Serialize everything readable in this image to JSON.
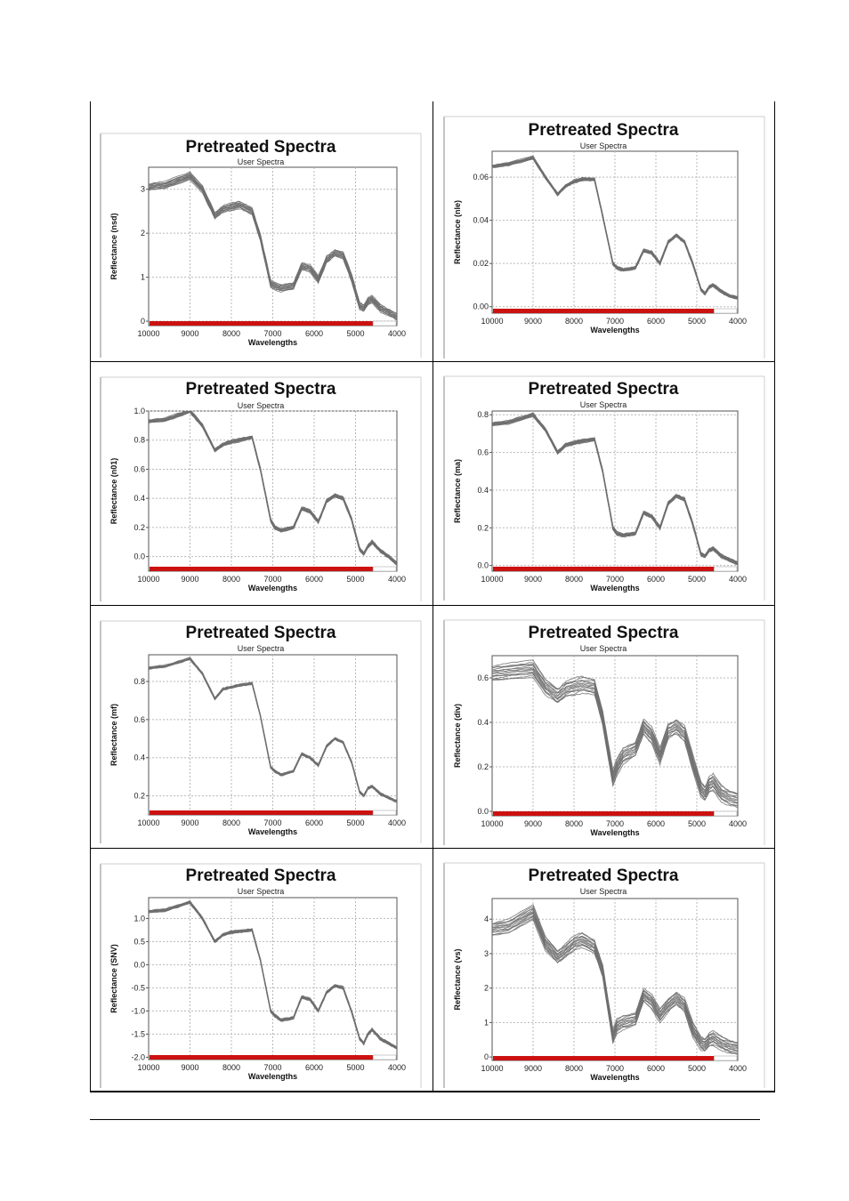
{
  "chart_data": [
    {
      "type": "line",
      "title": "Pretreated Spectra",
      "subtitle": "User Spectra",
      "xlabel": "Wavelengths",
      "ylabel": "Reflectance (nsd)",
      "xlim": [
        10000,
        4000
      ],
      "ylim": [
        -0.1,
        3.5
      ],
      "xticks": [
        "10000",
        "9000",
        "8000",
        "7000",
        "6000",
        "5000",
        "4000"
      ],
      "yticks": [
        {
          "v": 0,
          "label": "0"
        },
        {
          "v": 1,
          "label": "1"
        },
        {
          "v": 2,
          "label": "2"
        },
        {
          "v": 3,
          "label": "3"
        }
      ],
      "grid": true,
      "band_spread": 0.18,
      "x": [
        10000,
        9600,
        9000,
        8700,
        8400,
        8200,
        8000,
        7800,
        7500,
        7300,
        7050,
        6950,
        6800,
        6500,
        6300,
        6100,
        5900,
        5700,
        5500,
        5300,
        5100,
        4900,
        4800,
        4700,
        4600,
        4400,
        4200,
        4000
      ],
      "values": [
        3.05,
        3.1,
        3.3,
        3.0,
        2.4,
        2.55,
        2.6,
        2.65,
        2.5,
        1.9,
        0.85,
        0.8,
        0.75,
        0.8,
        1.25,
        1.2,
        0.95,
        1.4,
        1.55,
        1.5,
        1.0,
        0.35,
        0.3,
        0.45,
        0.5,
        0.3,
        0.2,
        0.1
      ]
    },
    {
      "type": "line",
      "title": "Pretreated Spectra",
      "subtitle": "User Spectra",
      "xlabel": "Wavelengths",
      "ylabel": "Reflectance (nle)",
      "xlim": [
        10000,
        4000
      ],
      "ylim": [
        -0.003,
        0.072
      ],
      "xticks": [
        "10000",
        "9000",
        "8000",
        "7000",
        "6000",
        "5000",
        "4000"
      ],
      "yticks": [
        {
          "v": 0,
          "label": "0.00"
        },
        {
          "v": 0.02,
          "label": "0.02"
        },
        {
          "v": 0.04,
          "label": "0.04"
        },
        {
          "v": 0.06,
          "label": "0.06"
        }
      ],
      "grid": true,
      "band_spread": 0.0015,
      "x": [
        10000,
        9600,
        9000,
        8700,
        8400,
        8200,
        8000,
        7800,
        7500,
        7300,
        7050,
        6950,
        6800,
        6500,
        6300,
        6100,
        5900,
        5700,
        5500,
        5300,
        5100,
        4900,
        4800,
        4700,
        4600,
        4400,
        4200,
        4000
      ],
      "values": [
        0.065,
        0.066,
        0.069,
        0.06,
        0.052,
        0.056,
        0.058,
        0.059,
        0.059,
        0.042,
        0.02,
        0.018,
        0.017,
        0.018,
        0.026,
        0.025,
        0.02,
        0.03,
        0.033,
        0.03,
        0.02,
        0.008,
        0.006,
        0.009,
        0.01,
        0.007,
        0.005,
        0.004
      ]
    },
    {
      "type": "line",
      "title": "Pretreated Spectra",
      "subtitle": "User Spectra",
      "xlabel": "Wavelengths",
      "ylabel": "Reflectance (n01)",
      "xlim": [
        10000,
        4000
      ],
      "ylim": [
        -0.1,
        1.0
      ],
      "xticks": [
        "10000",
        "9000",
        "8000",
        "7000",
        "6000",
        "5000",
        "4000"
      ],
      "yticks": [
        {
          "v": 0,
          "label": "0.0"
        },
        {
          "v": 0.2,
          "label": "0.2"
        },
        {
          "v": 0.4,
          "label": "0.4"
        },
        {
          "v": 0.6,
          "label": "0.6"
        },
        {
          "v": 0.8,
          "label": "0.8"
        },
        {
          "v": 1.0,
          "label": "1.0"
        }
      ],
      "grid": true,
      "band_spread": 0.025,
      "x": [
        10000,
        9600,
        9000,
        8700,
        8400,
        8200,
        8000,
        7800,
        7500,
        7300,
        7050,
        6950,
        6800,
        6500,
        6300,
        6100,
        5900,
        5700,
        5500,
        5300,
        5100,
        4900,
        4800,
        4700,
        4600,
        4400,
        4200,
        4000
      ],
      "values": [
        0.93,
        0.94,
        1.0,
        0.9,
        0.73,
        0.77,
        0.79,
        0.8,
        0.82,
        0.6,
        0.25,
        0.2,
        0.18,
        0.2,
        0.33,
        0.31,
        0.24,
        0.38,
        0.42,
        0.4,
        0.26,
        0.05,
        0.02,
        0.07,
        0.1,
        0.04,
        0.0,
        -0.05
      ]
    },
    {
      "type": "line",
      "title": "Pretreated Spectra",
      "subtitle": "User Spectra",
      "xlabel": "Wavelengths",
      "ylabel": "Reflectance (ma)",
      "xlim": [
        10000,
        4000
      ],
      "ylim": [
        -0.03,
        0.82
      ],
      "xticks": [
        "10000",
        "9000",
        "8000",
        "7000",
        "6000",
        "5000",
        "4000"
      ],
      "yticks": [
        {
          "v": 0,
          "label": "0.0"
        },
        {
          "v": 0.2,
          "label": "0.2"
        },
        {
          "v": 0.4,
          "label": "0.4"
        },
        {
          "v": 0.6,
          "label": "0.6"
        },
        {
          "v": 0.8,
          "label": "0.8"
        }
      ],
      "grid": true,
      "band_spread": 0.02,
      "x": [
        10000,
        9600,
        9000,
        8700,
        8400,
        8200,
        8000,
        7800,
        7500,
        7300,
        7050,
        6950,
        6800,
        6500,
        6300,
        6100,
        5900,
        5700,
        5500,
        5300,
        5100,
        4900,
        4800,
        4700,
        4600,
        4400,
        4200,
        4000
      ],
      "values": [
        0.75,
        0.76,
        0.8,
        0.72,
        0.6,
        0.64,
        0.65,
        0.66,
        0.67,
        0.5,
        0.2,
        0.17,
        0.16,
        0.17,
        0.28,
        0.26,
        0.2,
        0.33,
        0.37,
        0.35,
        0.22,
        0.06,
        0.05,
        0.08,
        0.09,
        0.05,
        0.03,
        0.01
      ]
    },
    {
      "type": "line",
      "title": "Pretreated Spectra",
      "subtitle": "User Spectra",
      "xlabel": "Wavelengths",
      "ylabel": "Reflectance (mf)",
      "xlim": [
        10000,
        4000
      ],
      "ylim": [
        0.1,
        0.94
      ],
      "xticks": [
        "10000",
        "9000",
        "8000",
        "7000",
        "6000",
        "5000",
        "4000"
      ],
      "yticks": [
        {
          "v": 0.2,
          "label": "0.2"
        },
        {
          "v": 0.4,
          "label": "0.4"
        },
        {
          "v": 0.6,
          "label": "0.6"
        },
        {
          "v": 0.8,
          "label": "0.8"
        }
      ],
      "grid": true,
      "band_spread": 0.012,
      "x": [
        10000,
        9600,
        9000,
        8700,
        8400,
        8200,
        8000,
        7800,
        7500,
        7300,
        7050,
        6950,
        6800,
        6500,
        6300,
        6100,
        5900,
        5700,
        5500,
        5300,
        5100,
        4900,
        4800,
        4700,
        4600,
        4400,
        4200,
        4000
      ],
      "values": [
        0.87,
        0.88,
        0.92,
        0.84,
        0.71,
        0.76,
        0.77,
        0.78,
        0.79,
        0.62,
        0.35,
        0.33,
        0.31,
        0.33,
        0.42,
        0.4,
        0.36,
        0.46,
        0.5,
        0.48,
        0.38,
        0.22,
        0.2,
        0.24,
        0.25,
        0.21,
        0.19,
        0.17
      ]
    },
    {
      "type": "line",
      "title": "Pretreated Spectra",
      "subtitle": "User Spectra",
      "xlabel": "Wavelengths",
      "ylabel": "Reflectance (div)",
      "xlim": [
        10000,
        4000
      ],
      "ylim": [
        -0.02,
        0.7
      ],
      "xticks": [
        "10000",
        "9000",
        "8000",
        "7000",
        "6000",
        "5000",
        "4000"
      ],
      "yticks": [
        {
          "v": 0,
          "label": "0.0"
        },
        {
          "v": 0.2,
          "label": "0.2"
        },
        {
          "v": 0.4,
          "label": "0.4"
        },
        {
          "v": 0.6,
          "label": "0.6"
        }
      ],
      "grid": true,
      "band_spread": 0.08,
      "x": [
        10000,
        9600,
        9000,
        8700,
        8400,
        8200,
        8000,
        7800,
        7500,
        7300,
        7050,
        6950,
        6800,
        6500,
        6300,
        6100,
        5900,
        5700,
        5500,
        5300,
        5100,
        4900,
        4800,
        4700,
        4600,
        4400,
        4200,
        4000
      ],
      "values": [
        0.62,
        0.63,
        0.64,
        0.56,
        0.52,
        0.55,
        0.56,
        0.57,
        0.56,
        0.42,
        0.15,
        0.2,
        0.25,
        0.28,
        0.38,
        0.34,
        0.25,
        0.36,
        0.38,
        0.35,
        0.22,
        0.1,
        0.08,
        0.12,
        0.13,
        0.08,
        0.06,
        0.05
      ]
    },
    {
      "type": "line",
      "title": "Pretreated Spectra",
      "subtitle": "User Spectra",
      "xlabel": "Wavelengths",
      "ylabel": "Reflectance (SNV)",
      "xlim": [
        10000,
        4000
      ],
      "ylim": [
        -2.05,
        1.45
      ],
      "xticks": [
        "10000",
        "9000",
        "8000",
        "7000",
        "6000",
        "5000",
        "4000"
      ],
      "yticks": [
        {
          "v": 1.0,
          "label": "1.0"
        },
        {
          "v": 0.5,
          "label": "0.5"
        },
        {
          "v": 0.0,
          "label": "0.0"
        },
        {
          "v": -0.5,
          "label": "-0.5"
        },
        {
          "v": -1.0,
          "label": "-1.0"
        },
        {
          "v": -1.5,
          "label": "-1.5"
        },
        {
          "v": -2.0,
          "label": "-2.0"
        }
      ],
      "grid": true,
      "band_spread": 0.06,
      "x": [
        10000,
        9600,
        9000,
        8700,
        8400,
        8200,
        8000,
        7800,
        7500,
        7300,
        7050,
        6950,
        6800,
        6500,
        6300,
        6100,
        5900,
        5700,
        5500,
        5300,
        5100,
        4900,
        4800,
        4700,
        4600,
        4400,
        4200,
        4000
      ],
      "values": [
        1.15,
        1.18,
        1.35,
        1.0,
        0.5,
        0.65,
        0.7,
        0.72,
        0.75,
        0.1,
        -1.0,
        -1.1,
        -1.2,
        -1.15,
        -0.7,
        -0.75,
        -1.0,
        -0.6,
        -0.45,
        -0.5,
        -1.0,
        -1.6,
        -1.7,
        -1.5,
        -1.4,
        -1.6,
        -1.7,
        -1.8
      ]
    },
    {
      "type": "line",
      "title": "Pretreated Spectra",
      "subtitle": "User Spectra",
      "xlabel": "Wavelengths",
      "ylabel": "Reflectance (vs)",
      "xlim": [
        10000,
        4000
      ],
      "ylim": [
        -0.1,
        4.6
      ],
      "xticks": [
        "10000",
        "9000",
        "8000",
        "7000",
        "6000",
        "5000",
        "4000"
      ],
      "yticks": [
        {
          "v": 0,
          "label": "0"
        },
        {
          "v": 1,
          "label": "1"
        },
        {
          "v": 2,
          "label": "2"
        },
        {
          "v": 3,
          "label": "3"
        },
        {
          "v": 4,
          "label": "4"
        }
      ],
      "grid": true,
      "band_spread": 0.45,
      "x": [
        10000,
        9600,
        9000,
        8700,
        8400,
        8200,
        8000,
        7800,
        7500,
        7300,
        7050,
        6950,
        6800,
        6500,
        6300,
        6100,
        5900,
        5700,
        5500,
        5300,
        5100,
        4900,
        4800,
        4700,
        4600,
        4400,
        4200,
        4000
      ],
      "values": [
        3.7,
        3.8,
        4.2,
        3.3,
        2.9,
        3.1,
        3.3,
        3.4,
        3.2,
        2.5,
        0.6,
        0.9,
        1.0,
        1.1,
        1.8,
        1.6,
        1.2,
        1.5,
        1.7,
        1.5,
        0.8,
        0.4,
        0.35,
        0.5,
        0.55,
        0.4,
        0.3,
        0.25
      ]
    }
  ],
  "colors": {
    "spectra": "#6e6e6e",
    "range_bar": "#cc1111",
    "grid": "#b8b8b8",
    "frame": "#888888"
  }
}
